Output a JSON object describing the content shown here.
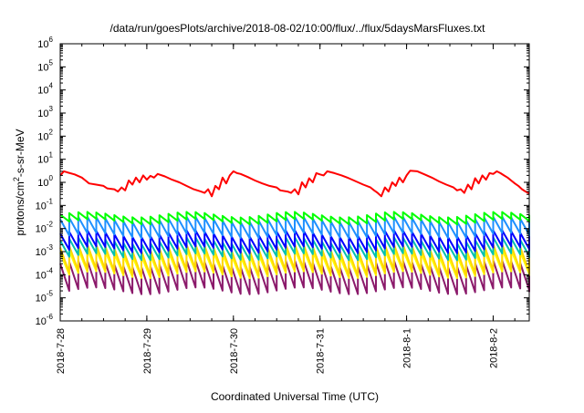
{
  "chart_data": {
    "type": "line",
    "title": "/data/run/goesPlots/archive/2018-08-02/10:00/flux/../flux/5daysMarsFluxes.txt",
    "xlabel": "Coordinated Universal Time (UTC)",
    "ylabel_parts": [
      "protons/cm",
      "2",
      "-s-sr-MeV"
    ],
    "x_range": [
      "2018-07-28T00:00",
      "2018-08-02T10:00"
    ],
    "ylim": [
      1e-06,
      1000000.0
    ],
    "yscale": "log",
    "grid": false,
    "x_ticks": [
      {
        "label": "2018-7-28",
        "t": "2018-07-28T00:00"
      },
      {
        "label": "2018-7-29",
        "t": "2018-07-29T00:00"
      },
      {
        "label": "2018-7-30",
        "t": "2018-07-30T00:00"
      },
      {
        "label": "2018-7-31",
        "t": "2018-07-31T00:00"
      },
      {
        "label": "2018-8-1",
        "t": "2018-08-01T00:00"
      },
      {
        "label": "2018-8-2",
        "t": "2018-08-02T00:00"
      }
    ],
    "y_ticks": [
      {
        "base": "10",
        "exp": "-6",
        "value": 1e-06
      },
      {
        "base": "10",
        "exp": "-5",
        "value": 1e-05
      },
      {
        "base": "10",
        "exp": "-4",
        "value": 0.0001
      },
      {
        "base": "10",
        "exp": "-3",
        "value": 0.001
      },
      {
        "base": "10",
        "exp": "-2",
        "value": 0.01
      },
      {
        "base": "10",
        "exp": "-1",
        "value": 0.1
      },
      {
        "base": "10",
        "exp": "0",
        "value": 1
      },
      {
        "base": "10",
        "exp": "1",
        "value": 10
      },
      {
        "base": "10",
        "exp": "2",
        "value": 100
      },
      {
        "base": "10",
        "exp": "3",
        "value": 1000
      },
      {
        "base": "10",
        "exp": "4",
        "value": 10000
      },
      {
        "base": "10",
        "exp": "5",
        "value": 100000
      },
      {
        "base": "10",
        "exp": "6",
        "value": 1000000
      }
    ],
    "series": [
      {
        "color": "#ff0000",
        "x": [
          "2018-07-28T00:00",
          "2018-07-28T01:00",
          "2018-07-28T02:00",
          "2018-07-28T04:00",
          "2018-07-28T06:00",
          "2018-07-28T07:00",
          "2018-07-28T08:00",
          "2018-07-28T10:00",
          "2018-07-28T12:00",
          "2018-07-28T13:00",
          "2018-07-28T15:00",
          "2018-07-28T16:00",
          "2018-07-28T17:00",
          "2018-07-28T18:00",
          "2018-07-28T19:00",
          "2018-07-28T20:00",
          "2018-07-28T21:00",
          "2018-07-28T22:00",
          "2018-07-28T23:00",
          "2018-07-29T00:00",
          "2018-07-29T01:00",
          "2018-07-29T02:00",
          "2018-07-29T03:00",
          "2018-07-29T05:00",
          "2018-07-29T07:00",
          "2018-07-29T09:00",
          "2018-07-29T11:00",
          "2018-07-29T13:00",
          "2018-07-29T15:00",
          "2018-07-29T16:00",
          "2018-07-29T17:00",
          "2018-07-29T18:00",
          "2018-07-29T19:00",
          "2018-07-29T20:00",
          "2018-07-29T21:00",
          "2018-07-29T22:00",
          "2018-07-29T23:00",
          "2018-07-30T00:00",
          "2018-07-30T01:00",
          "2018-07-30T02:00",
          "2018-07-30T04:00",
          "2018-07-30T06:00",
          "2018-07-30T08:00",
          "2018-07-30T10:00",
          "2018-07-30T12:00",
          "2018-07-30T13:00",
          "2018-07-30T15:00",
          "2018-07-30T16:00",
          "2018-07-30T17:00",
          "2018-07-30T18:00",
          "2018-07-30T19:00",
          "2018-07-30T20:00",
          "2018-07-30T21:00",
          "2018-07-30T22:00",
          "2018-07-30T23:00",
          "2018-07-31T00:00",
          "2018-07-31T01:00",
          "2018-07-31T02:00",
          "2018-07-31T04:00",
          "2018-07-31T06:00",
          "2018-07-31T08:00",
          "2018-07-31T10:00",
          "2018-07-31T12:00",
          "2018-07-31T14:00",
          "2018-07-31T15:00",
          "2018-07-31T16:00",
          "2018-07-31T17:00",
          "2018-07-31T18:00",
          "2018-07-31T19:00",
          "2018-07-31T20:00",
          "2018-07-31T21:00",
          "2018-07-31T22:00",
          "2018-07-31T23:00",
          "2018-08-01T00:00",
          "2018-08-01T01:00",
          "2018-08-01T03:00",
          "2018-08-01T05:00",
          "2018-08-01T07:00",
          "2018-08-01T09:00",
          "2018-08-01T11:00",
          "2018-08-01T13:00",
          "2018-08-01T14:00",
          "2018-08-01T15:00",
          "2018-08-01T16:00",
          "2018-08-01T17:00",
          "2018-08-01T18:00",
          "2018-08-01T19:00",
          "2018-08-01T20:00",
          "2018-08-01T21:00",
          "2018-08-01T22:00",
          "2018-08-01T23:00",
          "2018-08-02T00:00",
          "2018-08-02T01:00",
          "2018-08-02T02:00",
          "2018-08-02T03:00",
          "2018-08-02T04:00",
          "2018-08-02T05:00",
          "2018-08-02T06:00",
          "2018-08-02T07:00",
          "2018-08-02T08:00",
          "2018-08-02T09:00",
          "2018-08-02T10:00"
        ],
        "y": [
          2.0,
          3.0,
          2.7,
          2.2,
          1.6,
          1.2,
          0.9,
          0.8,
          0.7,
          0.55,
          0.5,
          0.4,
          0.6,
          0.45,
          1.2,
          0.8,
          1.6,
          1.0,
          2.0,
          1.3,
          1.9,
          1.6,
          2.3,
          1.8,
          1.3,
          1.0,
          0.7,
          0.5,
          0.4,
          0.35,
          0.5,
          0.25,
          0.7,
          0.5,
          1.6,
          0.9,
          2.0,
          3.0,
          2.5,
          2.3,
          1.7,
          1.2,
          0.9,
          0.7,
          0.6,
          0.45,
          0.4,
          0.35,
          0.5,
          0.3,
          1.0,
          0.6,
          1.5,
          1.0,
          2.5,
          2.2,
          2.0,
          3.0,
          2.5,
          2.0,
          1.5,
          1.1,
          0.8,
          0.6,
          0.45,
          0.35,
          0.25,
          0.6,
          0.4,
          1.0,
          0.7,
          1.6,
          1.0,
          2.0,
          3.2,
          3.0,
          2.2,
          1.6,
          1.1,
          0.8,
          0.6,
          0.45,
          0.5,
          0.35,
          0.8,
          0.5,
          1.5,
          0.9,
          2.0,
          1.3,
          2.5,
          2.3,
          3.0,
          2.5,
          2.0,
          1.6,
          1.2,
          0.9,
          0.7,
          0.5,
          0.4,
          0.33
        ]
      },
      {
        "color": "#00ff00",
        "sawtooth": {
          "period_hours": 2.5,
          "peak": 0.04,
          "trough": 0.02,
          "wave_amp": 0.12
        }
      },
      {
        "color": "#1e90ff",
        "sawtooth": {
          "period_hours": 2.5,
          "peak": 0.025,
          "trough": 0.005,
          "wave_amp": 0.12
        }
      },
      {
        "color": "#0000ff",
        "sawtooth": {
          "period_hours": 2.5,
          "peak": 0.006,
          "trough": 0.0012,
          "wave_amp": 0.15
        }
      },
      {
        "color": "#00c0b0",
        "sawtooth": {
          "period_hours": 2.5,
          "peak": 0.003,
          "trough": 0.0006,
          "wave_amp": 0.15
        }
      },
      {
        "color": "#ffd700",
        "sawtooth": {
          "period_hours": 2.5,
          "peak": 0.0015,
          "trough": 0.00012,
          "wave_amp": 0.15
        }
      },
      {
        "color": "#ffff00",
        "sawtooth": {
          "period_hours": 2.5,
          "peak": 0.0009,
          "trough": 0.0001,
          "wave_amp": 0.15
        }
      },
      {
        "color": "#8b1a6b",
        "sawtooth": {
          "period_hours": 2.5,
          "peak": 0.0003,
          "trough": 2e-05,
          "wave_amp": 0.15
        }
      }
    ]
  }
}
